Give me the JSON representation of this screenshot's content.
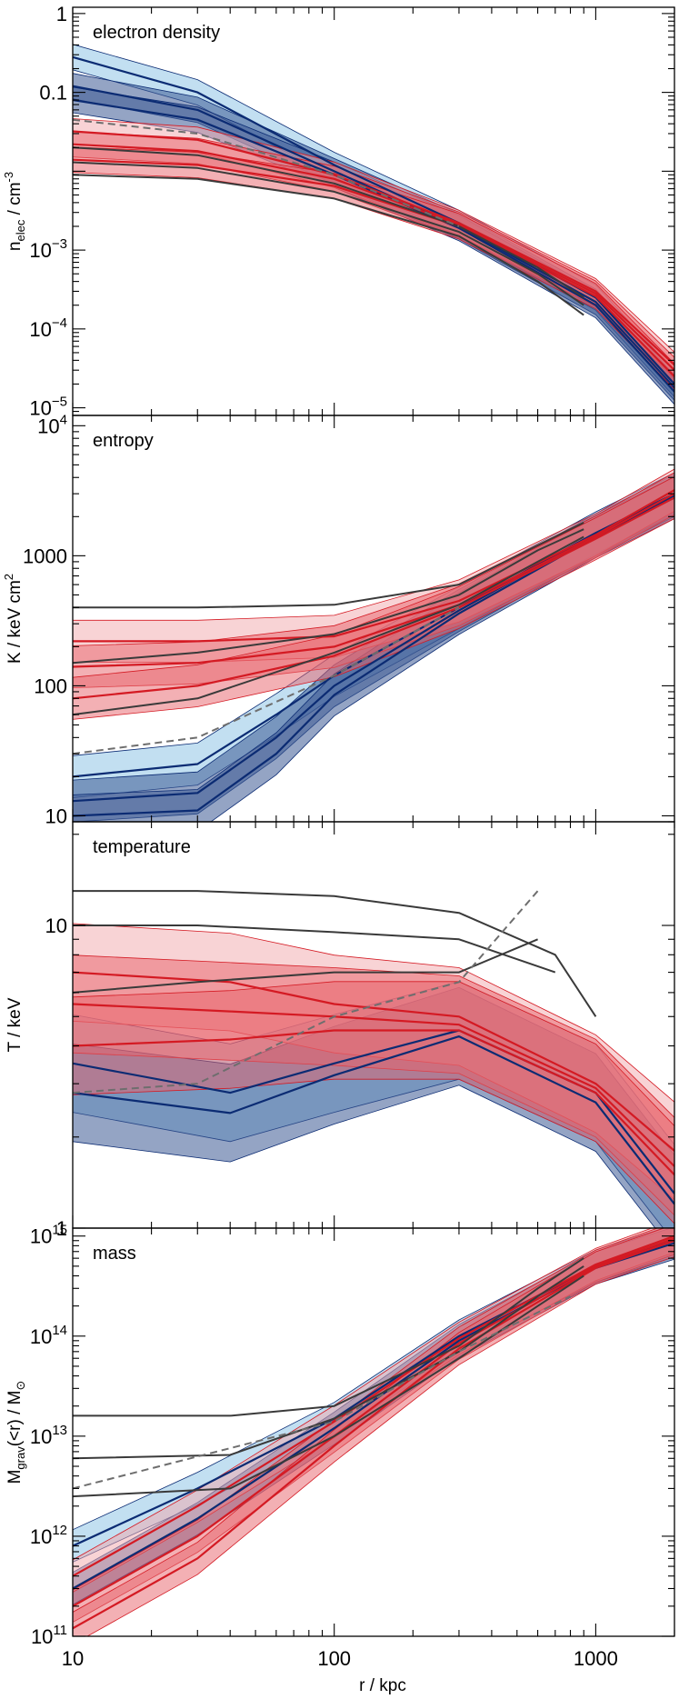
{
  "chart_data": [
    {
      "type": "line",
      "title": "electron density",
      "ylabel": "n_elec / cm^-3",
      "ylabel_main": "n",
      "ylabel_sub": "elec",
      "ylabel_rest": " / cm",
      "ylabel_sup": "-3",
      "yscale": "log",
      "ylim": [
        8e-06,
        1.2
      ],
      "xlim": [
        10,
        2000
      ],
      "yticks": [
        {
          "value": 1,
          "base": "1",
          "sup": ""
        },
        {
          "value": 0.1,
          "base": "0.1",
          "sup": ""
        },
        {
          "value": 0.001,
          "base": "10",
          "sup": "−3"
        },
        {
          "value": 0.0001,
          "base": "10",
          "sup": "−4"
        },
        {
          "value": 1e-05,
          "base": "10",
          "sup": "−5"
        }
      ],
      "series": [
        {
          "group": "blue",
          "x": [
            10,
            30,
            100,
            300,
            1000,
            2000
          ],
          "y": [
            0.28,
            0.1,
            0.012,
            0.0022,
            0.00025,
            2e-05
          ]
        },
        {
          "group": "blue",
          "x": [
            10,
            30,
            100,
            300,
            1000,
            2000
          ],
          "y": [
            0.12,
            0.06,
            0.01,
            0.002,
            0.00022,
            1.8e-05
          ]
        },
        {
          "group": "blue",
          "x": [
            10,
            30,
            100,
            300,
            1000,
            2000
          ],
          "y": [
            0.08,
            0.045,
            0.009,
            0.0019,
            0.0002,
            1.6e-05
          ]
        },
        {
          "group": "red",
          "x": [
            10,
            30,
            100,
            300,
            1000,
            2000
          ],
          "y": [
            0.032,
            0.025,
            0.009,
            0.0022,
            0.0003,
            3.5e-05
          ]
        },
        {
          "group": "red",
          "x": [
            10,
            30,
            100,
            300,
            1000,
            2000
          ],
          "y": [
            0.022,
            0.018,
            0.008,
            0.0021,
            0.00028,
            3e-05
          ]
        },
        {
          "group": "red",
          "x": [
            10,
            30,
            100,
            300,
            1000,
            2000
          ],
          "y": [
            0.014,
            0.012,
            0.0065,
            0.002,
            0.00026,
            2.5e-05
          ]
        },
        {
          "group": "black",
          "x": [
            10,
            30,
            100,
            300,
            600,
            900
          ],
          "y": [
            0.02,
            0.016,
            0.007,
            0.002,
            0.0006,
            0.00025
          ]
        },
        {
          "group": "black",
          "x": [
            10,
            30,
            100,
            300,
            600,
            900
          ],
          "y": [
            0.013,
            0.011,
            0.0055,
            0.0017,
            0.0005,
            0.0002
          ]
        },
        {
          "group": "black",
          "x": [
            10,
            30,
            100,
            300,
            600,
            900
          ],
          "y": [
            0.009,
            0.008,
            0.0045,
            0.0015,
            0.0004,
            0.00015
          ]
        },
        {
          "group": "dashed",
          "x": [
            10,
            30,
            100,
            300
          ],
          "y": [
            0.045,
            0.03,
            0.009,
            0.002
          ]
        }
      ]
    },
    {
      "type": "line",
      "title": "entropy",
      "ylabel": "K / keV cm^2",
      "ylabel_main": "K / keV cm",
      "ylabel_sub": "",
      "ylabel_rest": "",
      "ylabel_sup": "2",
      "yscale": "log",
      "ylim": [
        9,
        12000
      ],
      "xlim": [
        10,
        2000
      ],
      "yticks": [
        {
          "value": 10000,
          "base": "10",
          "sup": "4"
        },
        {
          "value": 1000,
          "base": "1000",
          "sup": ""
        },
        {
          "value": 100,
          "base": "100",
          "sup": ""
        },
        {
          "value": 10,
          "base": "10",
          "sup": ""
        }
      ],
      "series": [
        {
          "group": "blue",
          "x": [
            10,
            30,
            60,
            100,
            300,
            1000,
            2000
          ],
          "y": [
            20,
            25,
            60,
            120,
            400,
            1500,
            3000
          ]
        },
        {
          "group": "blue",
          "x": [
            10,
            30,
            60,
            100,
            300,
            1000,
            2000
          ],
          "y": [
            13,
            15,
            40,
            100,
            380,
            1450,
            2900
          ]
        },
        {
          "group": "blue",
          "x": [
            10,
            30,
            60,
            100,
            300,
            1000,
            2000
          ],
          "y": [
            10,
            11,
            30,
            85,
            360,
            1400,
            2800
          ]
        },
        {
          "group": "red",
          "x": [
            10,
            30,
            100,
            300,
            1000,
            2000
          ],
          "y": [
            220,
            220,
            240,
            450,
            1450,
            3200
          ]
        },
        {
          "group": "red",
          "x": [
            10,
            30,
            100,
            300,
            1000,
            2000
          ],
          "y": [
            140,
            150,
            200,
            420,
            1400,
            3000
          ]
        },
        {
          "group": "red",
          "x": [
            10,
            30,
            100,
            300,
            1000,
            2000
          ],
          "y": [
            80,
            100,
            170,
            400,
            1350,
            2800
          ]
        },
        {
          "group": "black",
          "x": [
            10,
            30,
            100,
            300,
            600,
            900
          ],
          "y": [
            400,
            400,
            420,
            600,
            1200,
            1800
          ]
        },
        {
          "group": "black",
          "x": [
            10,
            30,
            100,
            300,
            600,
            900
          ],
          "y": [
            150,
            180,
            250,
            500,
            1100,
            1600
          ]
        },
        {
          "group": "black",
          "x": [
            10,
            30,
            100,
            300,
            600,
            900
          ],
          "y": [
            60,
            80,
            180,
            420,
            900,
            1400
          ]
        },
        {
          "group": "dashed",
          "x": [
            10,
            30,
            100,
            300
          ],
          "y": [
            30,
            40,
            120,
            400
          ]
        }
      ]
    },
    {
      "type": "line",
      "title": "temperature",
      "ylabel": "T / keV",
      "ylabel_main": "T / keV",
      "ylabel_sub": "",
      "ylabel_rest": "",
      "ylabel_sup": "",
      "yscale": "log",
      "ylim": [
        1,
        22
      ],
      "xlim": [
        10,
        2000
      ],
      "yticks": [
        {
          "value": 10,
          "base": "10",
          "sup": ""
        },
        {
          "value": 1,
          "base": "1",
          "sup": ""
        }
      ],
      "series": [
        {
          "group": "blue",
          "x": [
            10,
            40,
            100,
            300,
            1000,
            2000
          ],
          "y": [
            3.5,
            2.8,
            3.5,
            4.5,
            2.8,
            1.3
          ]
        },
        {
          "group": "blue",
          "x": [
            10,
            40,
            100,
            300,
            1000,
            2000
          ],
          "y": [
            2.8,
            2.4,
            3.2,
            4.3,
            2.6,
            1.2
          ]
        },
        {
          "group": "red",
          "x": [
            10,
            40,
            100,
            300,
            1000,
            2000
          ],
          "y": [
            7,
            6.5,
            5.5,
            5,
            3,
            1.8
          ]
        },
        {
          "group": "red",
          "x": [
            10,
            40,
            100,
            300,
            1000,
            2000
          ],
          "y": [
            5.5,
            5.2,
            5,
            4.7,
            2.9,
            1.6
          ]
        },
        {
          "group": "red",
          "x": [
            10,
            40,
            100,
            300,
            1000,
            2000
          ],
          "y": [
            4,
            4.2,
            4.5,
            4.5,
            2.8,
            1.5
          ]
        },
        {
          "group": "black",
          "x": [
            10,
            30,
            100,
            300,
            700,
            1000
          ],
          "y": [
            13,
            13,
            12.5,
            11,
            8,
            5
          ]
        },
        {
          "group": "black",
          "x": [
            10,
            30,
            100,
            300,
            700
          ],
          "y": [
            10,
            10,
            9.5,
            9,
            7
          ]
        },
        {
          "group": "black",
          "x": [
            10,
            30,
            100,
            300,
            600
          ],
          "y": [
            6,
            6.5,
            7,
            7,
            9
          ]
        },
        {
          "group": "dashed",
          "x": [
            10,
            30,
            100,
            300,
            600
          ],
          "y": [
            2.8,
            3,
            5,
            6.5,
            13
          ]
        }
      ]
    },
    {
      "type": "line",
      "title": "mass",
      "ylabel": "M_grav(<r) / M_sun",
      "ylabel_main": "M",
      "ylabel_sub": "grav",
      "ylabel_rest": "(<r) / M",
      "ylabel_sup": "",
      "ylabel_tail_sub": "⊙",
      "yscale": "log",
      "ylim": [
        100000000000,
        1200000000000000
      ],
      "xlim": [
        10,
        2000
      ],
      "xlabel": "r / kpc",
      "xticks": [
        {
          "value": 10,
          "label": "10"
        },
        {
          "value": 100,
          "label": "100"
        },
        {
          "value": 1000,
          "label": "1000"
        }
      ],
      "yticks": [
        {
          "value": 1000000000000000,
          "base": "10",
          "sup": "15"
        },
        {
          "value": 100000000000000,
          "base": "10",
          "sup": "14"
        },
        {
          "value": 10000000000000,
          "base": "10",
          "sup": "13"
        },
        {
          "value": 1000000000000,
          "base": "10",
          "sup": "12"
        },
        {
          "value": 100000000000,
          "base": "10",
          "sup": "11"
        }
      ],
      "series": [
        {
          "group": "blue",
          "x": [
            10,
            30,
            100,
            300,
            1000,
            2000
          ],
          "y": [
            800000000000,
            3000000000000,
            15000000000000,
            100000000000000,
            500000000000000,
            900000000000000
          ]
        },
        {
          "group": "blue",
          "x": [
            10,
            30,
            100,
            300,
            1000,
            2000
          ],
          "y": [
            300000000000,
            1500000000000,
            12000000000000,
            90000000000000,
            480000000000000,
            850000000000000
          ]
        },
        {
          "group": "red",
          "x": [
            10,
            30,
            100,
            300,
            1000,
            2000
          ],
          "y": [
            400000000000,
            2000000000000,
            14000000000000,
            95000000000000,
            520000000000000,
            1000000000000000
          ]
        },
        {
          "group": "red",
          "x": [
            10,
            30,
            100,
            300,
            1000,
            2000
          ],
          "y": [
            200000000000,
            1000000000000,
            10000000000000,
            85000000000000,
            500000000000000,
            950000000000000
          ]
        },
        {
          "group": "red",
          "x": [
            10,
            30,
            100,
            300,
            1000,
            2000
          ],
          "y": [
            120000000000,
            600000000000,
            8000000000000,
            75000000000000,
            480000000000000,
            900000000000000
          ]
        },
        {
          "group": "black",
          "x": [
            10,
            40,
            100,
            300,
            600,
            900
          ],
          "y": [
            16000000000000,
            16000000000000,
            20000000000000,
            80000000000000,
            300000000000000,
            600000000000000
          ]
        },
        {
          "group": "black",
          "x": [
            10,
            40,
            100,
            300,
            600,
            900
          ],
          "y": [
            6000000000000,
            6500000000000,
            15000000000000,
            70000000000000,
            250000000000000,
            500000000000000
          ]
        },
        {
          "group": "black",
          "x": [
            10,
            40,
            100,
            300,
            600,
            900
          ],
          "y": [
            2500000000000,
            3000000000000,
            10000000000000,
            60000000000000,
            200000000000000,
            400000000000000
          ]
        },
        {
          "group": "dashed",
          "x": [
            10,
            100,
            300,
            800
          ],
          "y": [
            3000000000000,
            14000000000000,
            70000000000000,
            250000000000000
          ]
        }
      ]
    }
  ],
  "colors": {
    "blue_line": "#0b2b73",
    "blue_band": "#3c5a94",
    "blue_band_light": "#8fc4e6",
    "red_line": "#d41a23",
    "red_band": "#e8616a",
    "red_band_light": "#f2a7ab",
    "black_line": "#3a3a3a",
    "dashed_line": "#6e6e6e"
  }
}
